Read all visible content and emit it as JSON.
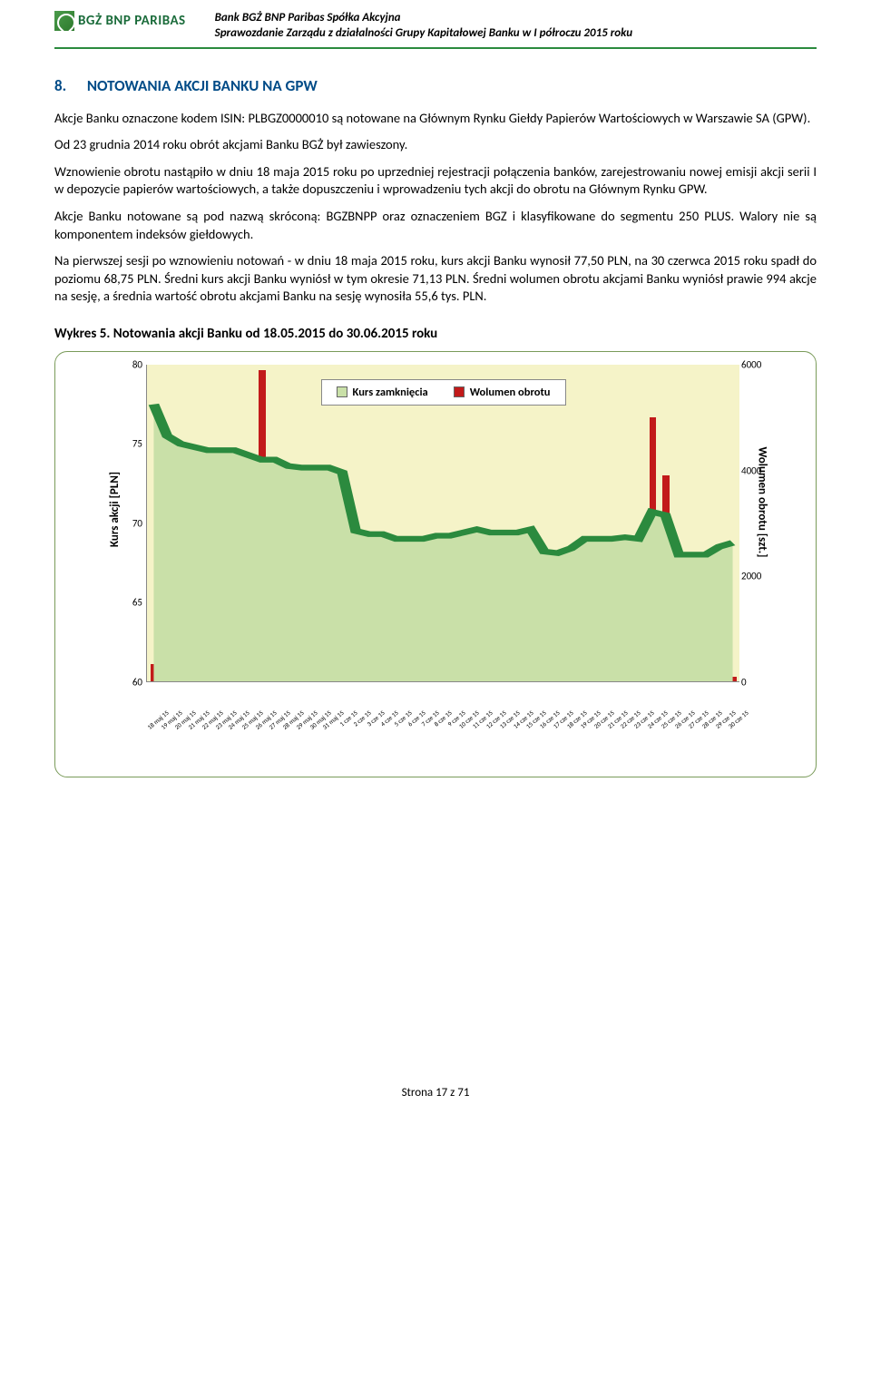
{
  "header": {
    "logo_text": "BGŻ BNP PARIBAS",
    "line1": "Bank BGŻ BNP Paribas Spółka Akcyjna",
    "line2": "Sprawozdanie Zarządu z działalności Grupy Kapitałowej Banku w I półroczu 2015 roku"
  },
  "section": {
    "num": "8.",
    "title": "NOTOWANIA AKCJI BANKU NA GPW"
  },
  "paragraphs": {
    "p1": "Akcje Banku oznaczone kodem ISIN: PLBGZ0000010 są notowane na Głównym Rynku Giełdy Papierów Wartościowych w Warszawie SA (GPW).",
    "p2": "Od 23 grudnia 2014 roku obrót akcjami Banku BGŻ był zawieszony.",
    "p3": "Wznowienie obrotu nastąpiło w dniu 18 maja 2015 roku po uprzedniej rejestracji połączenia banków, zarejestrowaniu nowej emisji akcji serii I w depozycie papierów wartościowych, a także dopuszczeniu i wprowadzeniu tych akcji do obrotu na Głównym Rynku GPW.",
    "p4": "Akcje Banku notowane są pod nazwą skróconą: BGZBNPP oraz oznaczeniem BGZ i klasyfikowane do segmentu 250 PLUS. Walory nie są komponentem indeksów giełdowych.",
    "p5": "Na pierwszej sesji po wznowieniu notowań - w dniu 18 maja 2015 roku, kurs akcji Banku wynosił 77,50 PLN, na 30 czerwca 2015 roku spadł do poziomu 68,75 PLN. Średni kurs akcji Banku wyniósł w tym okresie 71,13 PLN. Średni wolumen obrotu akcjami Banku wyniósł prawie 994 akcje na sesję, a średnia wartość obrotu akcjami Banku na sesję wynosiła 55,6 tys. PLN."
  },
  "chart": {
    "title": "Wykres 5. Notowania akcji Banku od 18.05.2015 do 30.06.2015 roku",
    "legend": {
      "series1": "Kurs zamknięcia",
      "series2": "Wolumen obrotu"
    },
    "y_left": {
      "label": "Kurs akcji [PLN]",
      "min": 60,
      "max": 80,
      "ticks": [
        60,
        65,
        70,
        75,
        80
      ]
    },
    "y_right": {
      "label": "Wolumen obrotu [szt.]",
      "min": 0,
      "max": 6000,
      "ticks": [
        0,
        2000,
        4000,
        6000
      ]
    },
    "colors": {
      "plot_bg": "#f5f3c8",
      "area_fill": "#c9e0a8",
      "line": "#2b8a3e",
      "bar": "#c21a1a",
      "legend_box1": "#c9e0a8",
      "frame_border": "#7a9b5a"
    },
    "categories": [
      "18 maj 15",
      "19 maj 15",
      "20 maj 15",
      "21 maj 15",
      "22 maj 15",
      "23 maj 15",
      "24 maj 15",
      "25 maj 15",
      "26 maj 15",
      "27 maj 15",
      "28 maj 15",
      "29 maj 15",
      "30 maj 15",
      "31 maj 15",
      "1 cze 15",
      "2 cze 15",
      "3 cze 15",
      "4 cze 15",
      "5 cze 15",
      "6 cze 15",
      "7 cze 15",
      "8 cze 15",
      "9 cze 15",
      "10 cze 15",
      "11 cze 15",
      "12 cze 15",
      "13 cze 15",
      "14 cze 15",
      "15 cze 15",
      "16 cze 15",
      "17 cze 15",
      "18 cze 15",
      "19 cze 15",
      "20 cze 15",
      "21 cze 15",
      "22 cze 15",
      "23 cze 15",
      "24 cze 15",
      "25 cze 15",
      "26 cze 15",
      "27 cze 15",
      "28 cze 15",
      "29 cze 15",
      "30 cze 15"
    ],
    "price": [
      77.5,
      75.5,
      75.0,
      74.8,
      74.6,
      74.6,
      74.6,
      74.3,
      74.0,
      74.0,
      73.6,
      73.5,
      73.5,
      73.5,
      73.2,
      69.5,
      69.3,
      69.3,
      69.0,
      69.0,
      69.0,
      69.2,
      69.2,
      69.4,
      69.6,
      69.4,
      69.4,
      69.4,
      69.6,
      68.2,
      68.1,
      68.4,
      69.0,
      69.0,
      69.0,
      69.1,
      69.0,
      70.7,
      70.5,
      68.0,
      68.0,
      68.0,
      68.5,
      68.75
    ],
    "volume": [
      320,
      220,
      150,
      70,
      0,
      0,
      0,
      2500,
      5900,
      700,
      700,
      150,
      0,
      0,
      850,
      400,
      60,
      60,
      80,
      0,
      0,
      60,
      30,
      90,
      120,
      50,
      0,
      0,
      60,
      180,
      50,
      80,
      30,
      0,
      0,
      30,
      120,
      5000,
      3900,
      250,
      0,
      0,
      180,
      80
    ]
  },
  "footer": {
    "page": "Strona 17 z 71"
  }
}
